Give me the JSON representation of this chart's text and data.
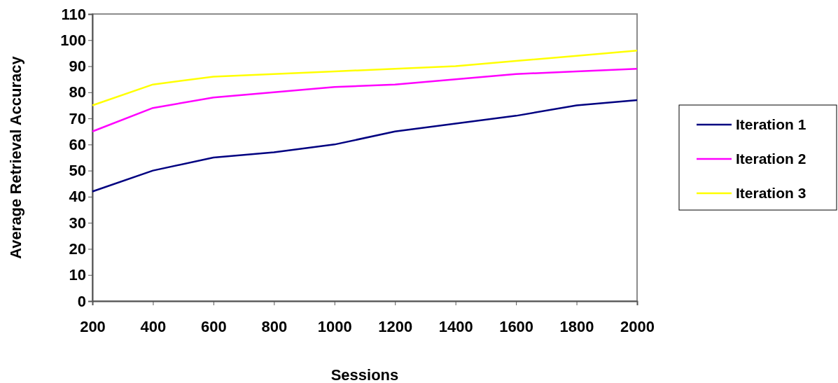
{
  "chart_data": {
    "type": "line",
    "xlabel": "Sessions",
    "ylabel": "Average Retrieval Accuracy",
    "x": [
      200,
      400,
      600,
      800,
      1000,
      1200,
      1400,
      1600,
      1800,
      2000
    ],
    "series": [
      {
        "name": "Iteration 1",
        "color": "#000080",
        "values": [
          42,
          50,
          55,
          57,
          60,
          65,
          68,
          71,
          75,
          77
        ]
      },
      {
        "name": "Iteration 2",
        "color": "#ff00ff",
        "values": [
          65,
          74,
          78,
          80,
          82,
          83,
          85,
          87,
          88,
          89
        ]
      },
      {
        "name": "Iteration 3",
        "color": "#ffff00",
        "values": [
          75,
          83,
          86,
          87,
          88,
          89,
          90,
          92,
          94,
          96
        ]
      }
    ],
    "xlim": [
      200,
      2000
    ],
    "xticks": [
      200,
      400,
      600,
      800,
      1000,
      1200,
      1400,
      1600,
      1800,
      2000
    ],
    "ylim": [
      0,
      110
    ],
    "yticks": [
      0,
      10,
      20,
      30,
      40,
      50,
      60,
      70,
      80,
      90,
      100,
      110
    ],
    "grid": false,
    "legend": "right",
    "marker": "none",
    "line_style": "solid"
  }
}
